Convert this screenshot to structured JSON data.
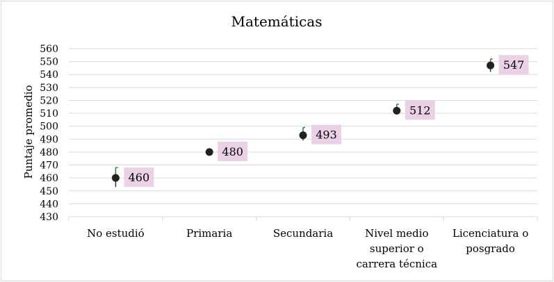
{
  "chart_data": {
    "type": "scatter",
    "title": "Matemáticas",
    "ylabel": "Puntaje promedio",
    "xlabel": "",
    "categories": [
      [
        "No estudió"
      ],
      [
        "Primaria"
      ],
      [
        "Secundaria"
      ],
      [
        "Nivel medio",
        "superior o",
        "carrera técnica"
      ],
      [
        "Licenciatura o",
        "posgrado"
      ]
    ],
    "values": [
      460,
      480,
      493,
      512,
      547
    ],
    "error_low": [
      453,
      479,
      489,
      509,
      542
    ],
    "error_high": [
      468,
      482,
      499,
      517,
      552
    ],
    "ylim": [
      430,
      560
    ],
    "yticks": [
      430,
      440,
      450,
      460,
      470,
      480,
      490,
      500,
      510,
      520,
      530,
      540,
      550,
      560
    ],
    "grid": true,
    "colors": {
      "marker": "#222222",
      "error_bar_low": "#333333",
      "error_bar_high": "#2e7d32",
      "label_bg": "#ead1e6",
      "grid": "#d9d9d9"
    }
  }
}
